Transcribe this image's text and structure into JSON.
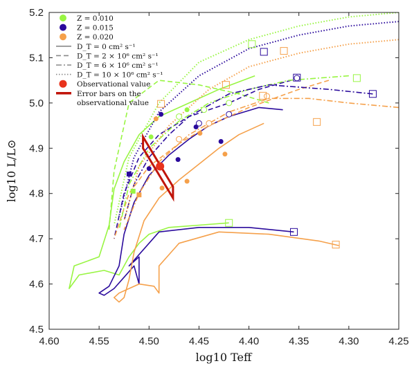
{
  "chart_data": {
    "type": "line",
    "xlabel": "log10 Teff",
    "ylabel": "log10 L/L⊙",
    "xlim": [
      4.6,
      4.25
    ],
    "xreversed": true,
    "ylim": [
      4.5,
      5.2
    ],
    "xticks": [
      "4.60",
      "4.55",
      "4.50",
      "4.45",
      "4.40",
      "4.35",
      "4.30",
      "4.25"
    ],
    "yticks": [
      "4.5",
      "4.6",
      "4.7",
      "4.8",
      "4.9",
      "5.0",
      "5.1",
      "5.2"
    ],
    "grid": false,
    "legend_position": "top-left",
    "legend": [
      {
        "label": "Z = 0.010",
        "marker": "circle",
        "color": "#98f542"
      },
      {
        "label": "Z = 0.015",
        "marker": "circle",
        "color": "#2a0a9c"
      },
      {
        "label": "Z = 0.020",
        "marker": "circle",
        "color": "#f5a04a"
      },
      {
        "label": "D_T = 0 cm² s⁻¹",
        "line": "solid",
        "color": "#888888"
      },
      {
        "label": "D_T = 2 × 10⁶ cm² s⁻¹",
        "line": "dashed",
        "color": "#888888"
      },
      {
        "label": "D_T = 6 × 10⁶ cm² s⁻¹",
        "line": "dashdot",
        "color": "#888888"
      },
      {
        "label": "D_T = 10 × 10⁶ cm² s⁻¹",
        "line": "dotted",
        "color": "#888888"
      },
      {
        "label": "Observational value",
        "marker": "circle",
        "color": "#e8321c"
      },
      {
        "label": "Error bars on the observational value",
        "line": "thick",
        "color": "#c0140a"
      }
    ],
    "colors": {
      "z010": "#98f542",
      "z015": "#2a0a9c",
      "z020": "#f5a04a",
      "obs": "#e8321c",
      "errbar": "#c0140a"
    },
    "series": [
      {
        "z": "0.010",
        "dt": "0",
        "style": "solid",
        "color": "#98f542",
        "x": [
          4.394,
          4.43,
          4.46,
          4.49,
          4.51,
          4.525,
          4.535,
          4.54,
          4.55,
          4.575,
          4.58,
          4.57,
          4.545,
          4.53,
          4.52,
          4.51,
          4.5,
          4.48,
          4.45,
          4.42
        ],
        "y": [
          5.06,
          5.03,
          5.0,
          4.97,
          4.93,
          4.87,
          4.81,
          4.73,
          4.66,
          4.64,
          4.59,
          4.62,
          4.63,
          4.62,
          4.66,
          4.69,
          4.71,
          4.725,
          4.73,
          4.735
        ]
      },
      {
        "z": "0.015",
        "dt": "0",
        "style": "solid",
        "color": "#2a0a9c",
        "x": [
          4.366,
          4.39,
          4.42,
          4.44,
          4.46,
          4.48,
          4.5,
          4.515,
          4.525,
          4.53,
          4.54,
          4.55,
          4.545,
          4.535,
          4.525,
          4.515,
          4.51,
          4.51,
          4.52,
          4.49,
          4.45,
          4.4,
          4.355
        ],
        "y": [
          4.985,
          4.99,
          4.97,
          4.95,
          4.92,
          4.885,
          4.84,
          4.78,
          4.71,
          4.64,
          4.595,
          4.58,
          4.575,
          4.59,
          4.615,
          4.64,
          4.6,
          4.66,
          4.64,
          4.715,
          4.725,
          4.725,
          4.715
        ]
      },
      {
        "z": "0.020",
        "dt": "0",
        "style": "solid",
        "color": "#f5a04a",
        "x": [
          4.385,
          4.41,
          4.43,
          4.45,
          4.47,
          4.49,
          4.505,
          4.515,
          4.52,
          4.525,
          4.53,
          4.535,
          4.53,
          4.52,
          4.51,
          4.495,
          4.49,
          4.49,
          4.47,
          4.43,
          4.38,
          4.33,
          4.31
        ],
        "y": [
          4.955,
          4.93,
          4.9,
          4.865,
          4.83,
          4.79,
          4.74,
          4.67,
          4.61,
          4.57,
          4.56,
          4.57,
          4.58,
          4.59,
          4.6,
          4.595,
          4.58,
          4.64,
          4.69,
          4.715,
          4.71,
          4.695,
          4.685
        ]
      },
      {
        "z": "0.010",
        "dt": "2e6",
        "style": "dashed",
        "color": "#98f542",
        "x": [
          4.38,
          4.41,
          4.45,
          4.49,
          4.52,
          4.535,
          4.54
        ],
        "y": [
          5.0,
          5.02,
          5.04,
          5.05,
          5.0,
          4.85,
          4.72
        ],
        "markers_x": [
          4.42,
          4.445,
          4.47
        ],
        "markers_y": [
          5.0,
          4.985,
          4.97
        ]
      },
      {
        "z": "0.015",
        "dt": "2e6",
        "style": "dashed",
        "color": "#2a0a9c",
        "x": [
          4.35,
          4.39,
          4.42,
          4.46,
          4.49,
          4.51,
          4.525,
          4.535
        ],
        "y": [
          5.055,
          5.03,
          5.0,
          4.97,
          4.93,
          4.88,
          4.8,
          4.7
        ],
        "markers_x": [
          4.352,
          4.42,
          4.45
        ],
        "markers_y": [
          5.055,
          4.975,
          4.955
        ]
      },
      {
        "z": "0.020",
        "dt": "2e6",
        "style": "dashed",
        "color": "#f5a04a",
        "x": [
          4.32,
          4.35,
          4.4,
          4.44,
          4.47,
          4.5,
          4.52,
          4.535
        ],
        "y": [
          5.05,
          5.03,
          4.99,
          4.95,
          4.91,
          4.86,
          4.8,
          4.7
        ],
        "markers_x": [
          4.382,
          4.44,
          4.47
        ],
        "markers_y": [
          5.015,
          4.955,
          4.92
        ]
      },
      {
        "z": "0.010",
        "dt": "6e6",
        "style": "dashdot",
        "color": "#98f542",
        "x": [
          4.3,
          4.36,
          4.4,
          4.44,
          4.47,
          4.5,
          4.52,
          4.53
        ],
        "y": [
          5.06,
          5.05,
          5.03,
          5.0,
          4.96,
          4.9,
          4.82,
          4.72
        ]
      },
      {
        "z": "0.015",
        "dt": "6e6",
        "style": "dashdot",
        "color": "#2a0a9c",
        "x": [
          4.276,
          4.32,
          4.38,
          4.42,
          4.46,
          4.48,
          4.5,
          4.515,
          4.525
        ],
        "y": [
          5.02,
          5.03,
          5.04,
          5.02,
          4.97,
          4.93,
          4.88,
          4.82,
          4.74
        ]
      },
      {
        "z": "0.020",
        "dt": "6e6",
        "style": "dashdot",
        "color": "#f5a04a",
        "x": [
          4.25,
          4.3,
          4.34,
          4.38,
          4.42,
          4.46,
          4.49,
          4.51,
          4.525
        ],
        "y": [
          4.99,
          5.0,
          5.01,
          5.01,
          4.98,
          4.93,
          4.87,
          4.8,
          4.72
        ]
      },
      {
        "z": "0.010",
        "dt": "10e6",
        "style": "dotted",
        "color": "#98f542",
        "x": [
          4.25,
          4.3,
          4.35,
          4.4,
          4.45,
          4.49,
          4.52,
          4.535
        ],
        "y": [
          5.2,
          5.19,
          5.17,
          5.14,
          5.09,
          5.0,
          4.88,
          4.73
        ]
      },
      {
        "z": "0.015",
        "dt": "10e6",
        "style": "dotted",
        "color": "#2a0a9c",
        "x": [
          4.25,
          4.3,
          4.35,
          4.4,
          4.45,
          4.49,
          4.515,
          4.53
        ],
        "y": [
          5.18,
          5.17,
          5.15,
          5.12,
          5.06,
          4.98,
          4.88,
          4.75
        ]
      },
      {
        "z": "0.020",
        "dt": "10e6",
        "style": "dotted",
        "color": "#f5a04a",
        "x": [
          4.25,
          4.3,
          4.35,
          4.4,
          4.44,
          4.48,
          4.51,
          4.525
        ],
        "y": [
          5.14,
          5.13,
          5.11,
          5.08,
          5.03,
          4.95,
          4.86,
          4.74
        ]
      }
    ],
    "filled_markers": [
      {
        "color": "#98f542",
        "x": [
          4.462,
          4.498,
          4.516
        ],
        "y": [
          4.985,
          4.925,
          4.805
        ]
      },
      {
        "color": "#2a0a9c",
        "x": [
          4.488,
          4.453,
          4.428,
          4.471,
          4.5,
          4.52
        ],
        "y": [
          4.975,
          4.947,
          4.915,
          4.875,
          4.855,
          4.843
        ]
      },
      {
        "color": "#f5a04a",
        "x": [
          4.493,
          4.449,
          4.424,
          4.462,
          4.487,
          4.51
        ],
        "y": [
          4.965,
          4.933,
          4.887,
          4.827,
          4.812,
          4.797
        ]
      }
    ],
    "open_squares": [
      {
        "color": "#98f542",
        "x": [
          4.42,
          4.292,
          4.397
        ],
        "y": [
          4.735,
          5.055,
          5.13
        ]
      },
      {
        "color": "#2a0a9c",
        "x": [
          4.355,
          4.276,
          4.385,
          4.352
        ],
        "y": [
          4.715,
          5.02,
          5.113,
          5.056
        ]
      },
      {
        "color": "#f5a04a",
        "x": [
          4.313,
          4.332,
          4.423,
          4.386,
          4.365,
          4.488
        ],
        "y": [
          4.687,
          4.958,
          5.04,
          5.016,
          5.115,
          4.998
        ]
      }
    ],
    "observation": {
      "x": 4.489,
      "y": 4.86,
      "err_polygon_x": [
        4.506,
        4.476,
        4.476,
        4.506
      ],
      "err_polygon_y": [
        4.925,
        4.815,
        4.79,
        4.9
      ]
    }
  }
}
